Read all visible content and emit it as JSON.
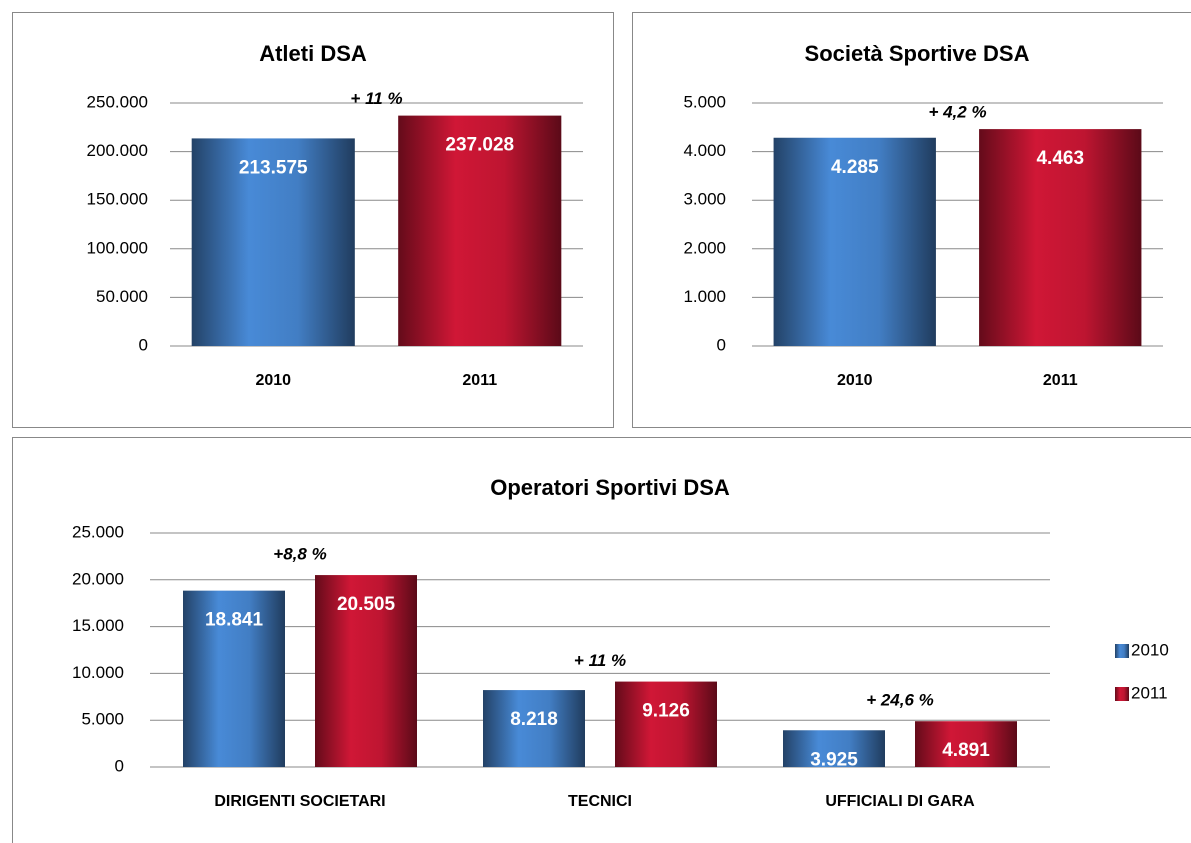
{
  "chart_data": [
    {
      "type": "bar",
      "title": "Atleti DSA",
      "categories": [
        "2010",
        "2011"
      ],
      "values": [
        213575,
        237028
      ],
      "value_labels": [
        "213.575",
        "237.028"
      ],
      "colors": [
        "#3f78bb",
        "#b5142f"
      ],
      "ylim": [
        0,
        250000
      ],
      "yticks": [
        0,
        {
          "value": 50000,
          "label": "50.000"
        },
        {
          "value": 100000,
          "label": "100.000"
        },
        {
          "value": 150000,
          "label": "150.000"
        },
        {
          "value": 200000,
          "label": "200.000"
        },
        {
          "value": 250000,
          "label": "250.000"
        }
      ],
      "grid": true,
      "annotations": [
        "+ 11 %"
      ]
    },
    {
      "type": "bar",
      "title": "Società Sportive DSA",
      "categories": [
        "2010",
        "2011"
      ],
      "values": [
        4285,
        4463
      ],
      "value_labels": [
        "4.285",
        "4.463"
      ],
      "colors": [
        "#3f78bb",
        "#b5142f"
      ],
      "ylim": [
        0,
        5000
      ],
      "yticks": [
        0,
        {
          "value": 1000,
          "label": "1.000"
        },
        {
          "value": 2000,
          "label": "2.000"
        },
        {
          "value": 3000,
          "label": "3.000"
        },
        {
          "value": 4000,
          "label": "4.000"
        },
        {
          "value": 5000,
          "label": "5.000"
        }
      ],
      "grid": true,
      "annotations": [
        "+ 4,2 %"
      ]
    },
    {
      "type": "bar",
      "title": "Operatori Sportivi DSA",
      "categories": [
        "DIRIGENTI SOCIETARI",
        "TECNICI",
        "UFFICIALI DI GARA"
      ],
      "series": [
        {
          "name": "2010",
          "color": "#3f78bb",
          "values": [
            18841,
            8218,
            3925
          ],
          "value_labels": [
            "18.841",
            "8.218",
            "3.925"
          ]
        },
        {
          "name": "2011",
          "color": "#b5142f",
          "values": [
            20505,
            9126,
            4891
          ],
          "value_labels": [
            "20.505",
            "9.126",
            "4.891"
          ]
        }
      ],
      "ylim": [
        0,
        25000
      ],
      "yticks": [
        0,
        {
          "value": 5000,
          "label": "5.000"
        },
        {
          "value": 10000,
          "label": "10.000"
        },
        {
          "value": 15000,
          "label": "15.000"
        },
        {
          "value": 20000,
          "label": "20.000"
        },
        {
          "value": 25000,
          "label": "25.000"
        }
      ],
      "grid": true,
      "legend": "right",
      "annotations": [
        "+8,8 %",
        "+ 11 %",
        "+ 24,6 %"
      ]
    }
  ]
}
